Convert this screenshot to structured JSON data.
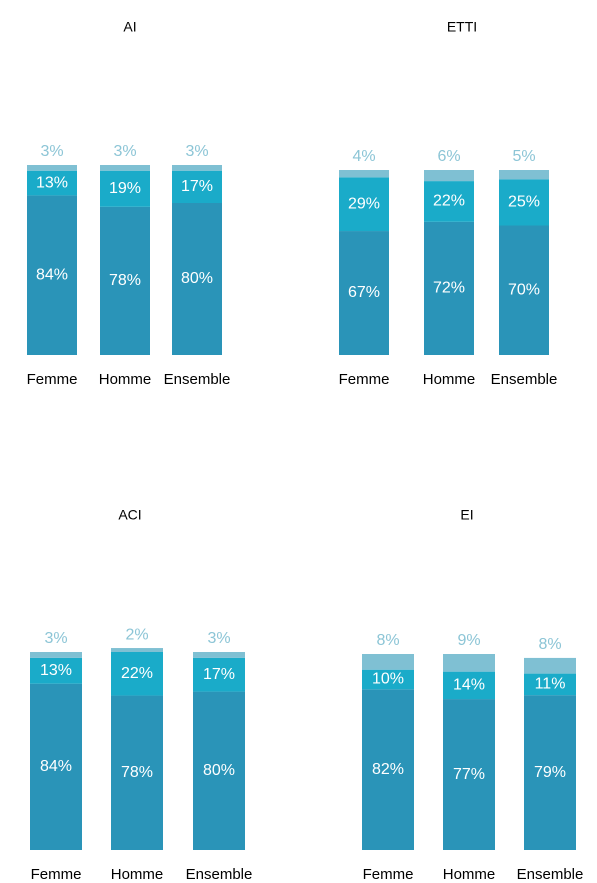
{
  "chart_data": [
    {
      "type": "bar",
      "stacked": true,
      "title": "AI",
      "categories": [
        "Femme",
        "Homme",
        "Ensemble"
      ],
      "series": [
        {
          "color": "#2a94b8",
          "values": [
            84,
            78,
            80
          ],
          "value_labels": [
            "84%",
            "78%",
            "80%"
          ]
        },
        {
          "color": "#1aabc9",
          "values": [
            13,
            19,
            17
          ],
          "value_labels": [
            "13%",
            "19%",
            "17%"
          ]
        },
        {
          "color": "#7fc0d3",
          "values": [
            3,
            3,
            3
          ],
          "value_labels": [
            "3%",
            "3%",
            "3%"
          ]
        }
      ]
    },
    {
      "type": "bar",
      "stacked": true,
      "title": "ETTI",
      "categories": [
        "Femme",
        "Homme",
        "Ensemble"
      ],
      "series": [
        {
          "color": "#2a94b8",
          "values": [
            67,
            72,
            70
          ],
          "value_labels": [
            "67%",
            "72%",
            "70%"
          ]
        },
        {
          "color": "#1aabc9",
          "values": [
            29,
            22,
            25
          ],
          "value_labels": [
            "29%",
            "22%",
            "25%"
          ]
        },
        {
          "color": "#7fc0d3",
          "values": [
            4,
            6,
            5
          ],
          "value_labels": [
            "4%",
            "6%",
            "5%"
          ]
        }
      ]
    },
    {
      "type": "bar",
      "stacked": true,
      "title": "ACI",
      "categories": [
        "Femme",
        "Homme",
        "Ensemble"
      ],
      "series": [
        {
          "color": "#2a94b8",
          "values": [
            84,
            78,
            80
          ],
          "value_labels": [
            "84%",
            "78%",
            "80%"
          ]
        },
        {
          "color": "#1aabc9",
          "values": [
            13,
            22,
            17
          ],
          "value_labels": [
            "13%",
            "22%",
            "17%"
          ]
        },
        {
          "color": "#7fc0d3",
          "values": [
            3,
            2,
            3
          ],
          "value_labels": [
            "3%",
            "2%",
            "3%"
          ]
        }
      ]
    },
    {
      "type": "bar",
      "stacked": true,
      "title": "EI",
      "categories": [
        "Femme",
        "Homme",
        "Ensemble"
      ],
      "series": [
        {
          "color": "#2a94b8",
          "values": [
            82,
            77,
            79
          ],
          "value_labels": [
            "82%",
            "77%",
            "79%"
          ]
        },
        {
          "color": "#1aabc9",
          "values": [
            10,
            14,
            11
          ],
          "value_labels": [
            "10%",
            "14%",
            "11%"
          ]
        },
        {
          "color": "#7fc0d3",
          "values": [
            8,
            9,
            8
          ],
          "value_labels": [
            "8%",
            "9%",
            "8%"
          ]
        }
      ]
    }
  ]
}
